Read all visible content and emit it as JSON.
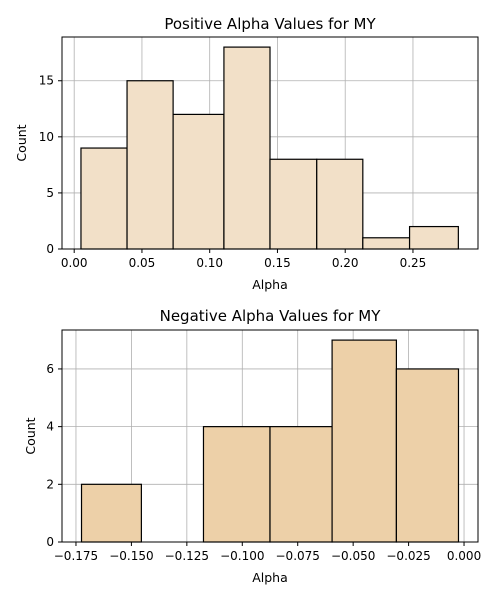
{
  "chart_data": [
    {
      "type": "bar",
      "title": "Positive Alpha Values for MY",
      "xlabel": "Alpha",
      "ylabel": "Count",
      "xlim": [
        -0.009,
        0.298
      ],
      "ylim": [
        0,
        18.9
      ],
      "xticks": [
        "0.00",
        "0.05",
        "0.10",
        "0.15",
        "0.20",
        "0.25"
      ],
      "xtick_values": [
        0.0,
        0.05,
        0.1,
        0.15,
        0.2,
        0.25
      ],
      "yticks": [
        "0",
        "5",
        "10",
        "15"
      ],
      "ytick_values": [
        0,
        5,
        10,
        15
      ],
      "bin_edges": [
        0.005,
        0.039,
        0.073,
        0.1105,
        0.1445,
        0.179,
        0.213,
        0.2475,
        0.2835
      ],
      "values": [
        9,
        15,
        12,
        18,
        8,
        8,
        1,
        2
      ],
      "bar_color": "#f2e0c8",
      "edge_color": "#000000",
      "grid": true
    },
    {
      "type": "bar",
      "title": "Negative Alpha Values for MY",
      "xlabel": "Alpha",
      "ylabel": "Count",
      "xlim": [
        -0.1813,
        0.0063
      ],
      "ylim": [
        0,
        7.35
      ],
      "xticks": [
        "−0.175",
        "−0.150",
        "−0.125",
        "−0.100",
        "−0.075",
        "−0.050",
        "−0.025",
        "0.000"
      ],
      "xtick_values": [
        -0.175,
        -0.15,
        -0.125,
        -0.1,
        -0.075,
        -0.05,
        -0.025,
        0.0
      ],
      "yticks": [
        "0",
        "2",
        "4",
        "6"
      ],
      "ytick_values": [
        0,
        2,
        4,
        6
      ],
      "bin_edges": [
        -0.1725,
        -0.1455,
        -0.1175,
        -0.0875,
        -0.0595,
        -0.0305,
        -0.0025
      ],
      "values": [
        2,
        0,
        4,
        4,
        7,
        6
      ],
      "bar_color": "#edd0a8",
      "edge_color": "#000000",
      "grid": true
    }
  ]
}
